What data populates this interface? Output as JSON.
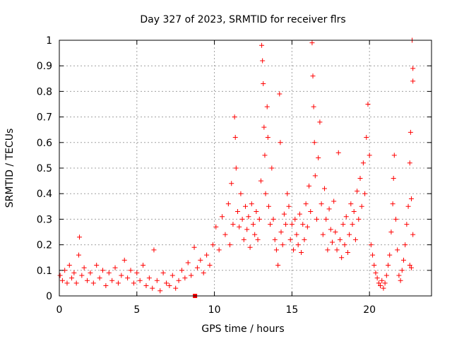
{
  "chart_data": {
    "type": "scatter",
    "title": "Day 327 of 2023, SRMTID for receiver flrs",
    "xlabel": "GPS time / hours",
    "ylabel": "SRMTID / TECUs",
    "xlim": [
      0,
      24
    ],
    "ylim": [
      0,
      1
    ],
    "xticks": [
      0,
      5,
      10,
      15,
      20
    ],
    "xtick_labels": [
      "0",
      "5",
      "10",
      "15",
      "20"
    ],
    "yticks": [
      0,
      0.1,
      0.2,
      0.3,
      0.4,
      0.5,
      0.6,
      0.7,
      0.8,
      0.9,
      1
    ],
    "ytick_labels": [
      "0",
      "0.1",
      "0.2",
      "0.3",
      "0.4",
      "0.5",
      "0.6",
      "0.7",
      "0.8",
      "0.9",
      "1"
    ],
    "grid": true,
    "marker": "+",
    "color": "#ff0000",
    "series": [
      {
        "name": "SRMTID",
        "points": [
          [
            0.05,
            0.08
          ],
          [
            0.2,
            0.06
          ],
          [
            0.35,
            0.1
          ],
          [
            0.5,
            0.05
          ],
          [
            0.65,
            0.12
          ],
          [
            0.8,
            0.07
          ],
          [
            0.95,
            0.09
          ],
          [
            1.1,
            0.05
          ],
          [
            1.25,
            0.16
          ],
          [
            1.3,
            0.23
          ],
          [
            1.45,
            0.08
          ],
          [
            1.6,
            0.11
          ],
          [
            1.8,
            0.06
          ],
          [
            2.0,
            0.09
          ],
          [
            2.2,
            0.05
          ],
          [
            2.4,
            0.12
          ],
          [
            2.6,
            0.07
          ],
          [
            2.8,
            0.1
          ],
          [
            3.0,
            0.04
          ],
          [
            3.2,
            0.09
          ],
          [
            3.4,
            0.06
          ],
          [
            3.6,
            0.11
          ],
          [
            3.8,
            0.05
          ],
          [
            4.0,
            0.08
          ],
          [
            4.2,
            0.14
          ],
          [
            4.4,
            0.07
          ],
          [
            4.6,
            0.1
          ],
          [
            4.8,
            0.05
          ],
          [
            5.0,
            0.09
          ],
          [
            5.2,
            0.06
          ],
          [
            5.4,
            0.12
          ],
          [
            5.6,
            0.04
          ],
          [
            5.8,
            0.07
          ],
          [
            6.0,
            0.03
          ],
          [
            6.1,
            0.18
          ],
          [
            6.3,
            0.06
          ],
          [
            6.5,
            0.02
          ],
          [
            6.7,
            0.09
          ],
          [
            6.9,
            0.05
          ],
          [
            7.1,
            0.04
          ],
          [
            7.3,
            0.08
          ],
          [
            7.5,
            0.03
          ],
          [
            7.7,
            0.06
          ],
          [
            7.9,
            0.1
          ],
          [
            8.1,
            0.07
          ],
          [
            8.3,
            0.13
          ],
          [
            8.5,
            0.08
          ],
          [
            8.7,
            0.19
          ],
          [
            8.9,
            0.11
          ],
          [
            9.1,
            0.14
          ],
          [
            9.3,
            0.09
          ],
          [
            9.5,
            0.16
          ],
          [
            9.7,
            0.12
          ],
          [
            9.9,
            0.2
          ],
          [
            10.1,
            0.27
          ],
          [
            10.3,
            0.18
          ],
          [
            10.5,
            0.31
          ],
          [
            10.7,
            0.24
          ],
          [
            10.9,
            0.36
          ],
          [
            11.0,
            0.2
          ],
          [
            11.1,
            0.44
          ],
          [
            11.2,
            0.28
          ],
          [
            11.3,
            0.7
          ],
          [
            11.35,
            0.62
          ],
          [
            11.4,
            0.5
          ],
          [
            11.5,
            0.33
          ],
          [
            11.6,
            0.27
          ],
          [
            11.7,
            0.4
          ],
          [
            11.8,
            0.3
          ],
          [
            11.9,
            0.22
          ],
          [
            12.0,
            0.35
          ],
          [
            12.1,
            0.26
          ],
          [
            12.2,
            0.31
          ],
          [
            12.3,
            0.19
          ],
          [
            12.4,
            0.36
          ],
          [
            12.5,
            0.28
          ],
          [
            12.6,
            0.24
          ],
          [
            12.7,
            0.33
          ],
          [
            12.8,
            0.22
          ],
          [
            12.9,
            0.3
          ],
          [
            13.0,
            0.45
          ],
          [
            13.05,
            0.98
          ],
          [
            13.1,
            0.92
          ],
          [
            13.15,
            0.83
          ],
          [
            13.2,
            0.66
          ],
          [
            13.25,
            0.55
          ],
          [
            13.3,
            0.4
          ],
          [
            13.4,
            0.74
          ],
          [
            13.45,
            0.62
          ],
          [
            13.5,
            0.35
          ],
          [
            13.6,
            0.28
          ],
          [
            13.7,
            0.5
          ],
          [
            13.8,
            0.3
          ],
          [
            13.9,
            0.22
          ],
          [
            14.0,
            0.18
          ],
          [
            14.1,
            0.12
          ],
          [
            14.2,
            0.79
          ],
          [
            14.25,
            0.6
          ],
          [
            14.3,
            0.25
          ],
          [
            14.4,
            0.2
          ],
          [
            14.5,
            0.32
          ],
          [
            14.6,
            0.28
          ],
          [
            14.7,
            0.4
          ],
          [
            14.8,
            0.35
          ],
          [
            14.9,
            0.22
          ],
          [
            15.0,
            0.28
          ],
          [
            15.1,
            0.18
          ],
          [
            15.2,
            0.3
          ],
          [
            15.3,
            0.24
          ],
          [
            15.4,
            0.2
          ],
          [
            15.5,
            0.32
          ],
          [
            15.6,
            0.17
          ],
          [
            15.7,
            0.28
          ],
          [
            15.8,
            0.22
          ],
          [
            15.9,
            0.36
          ],
          [
            16.0,
            0.27
          ],
          [
            16.1,
            0.43
          ],
          [
            16.2,
            0.33
          ],
          [
            16.3,
            0.99
          ],
          [
            16.35,
            0.86
          ],
          [
            16.4,
            0.74
          ],
          [
            16.45,
            0.6
          ],
          [
            16.5,
            0.47
          ],
          [
            16.6,
            0.3
          ],
          [
            16.7,
            0.54
          ],
          [
            16.8,
            0.68
          ],
          [
            16.9,
            0.36
          ],
          [
            17.0,
            0.24
          ],
          [
            17.1,
            0.42
          ],
          [
            17.2,
            0.3
          ],
          [
            17.3,
            0.18
          ],
          [
            17.4,
            0.34
          ],
          [
            17.5,
            0.26
          ],
          [
            17.6,
            0.21
          ],
          [
            17.7,
            0.37
          ],
          [
            17.8,
            0.25
          ],
          [
            17.9,
            0.18
          ],
          [
            18.0,
            0.56
          ],
          [
            18.1,
            0.22
          ],
          [
            18.2,
            0.15
          ],
          [
            18.3,
            0.28
          ],
          [
            18.4,
            0.2
          ],
          [
            18.5,
            0.31
          ],
          [
            18.6,
            0.17
          ],
          [
            18.7,
            0.24
          ],
          [
            18.8,
            0.36
          ],
          [
            18.9,
            0.28
          ],
          [
            19.0,
            0.33
          ],
          [
            19.1,
            0.22
          ],
          [
            19.2,
            0.41
          ],
          [
            19.3,
            0.3
          ],
          [
            19.4,
            0.46
          ],
          [
            19.5,
            0.35
          ],
          [
            19.6,
            0.52
          ],
          [
            19.7,
            0.4
          ],
          [
            19.8,
            0.62
          ],
          [
            19.9,
            0.75
          ],
          [
            20.0,
            0.55
          ],
          [
            20.1,
            0.2
          ],
          [
            20.2,
            0.16
          ],
          [
            20.3,
            0.12
          ],
          [
            20.4,
            0.09
          ],
          [
            20.5,
            0.07
          ],
          [
            20.6,
            0.05
          ],
          [
            20.7,
            0.04
          ],
          [
            20.8,
            0.06
          ],
          [
            20.9,
            0.03
          ],
          [
            21.0,
            0.05
          ],
          [
            21.1,
            0.08
          ],
          [
            21.2,
            0.12
          ],
          [
            21.3,
            0.16
          ],
          [
            21.4,
            0.25
          ],
          [
            21.5,
            0.36
          ],
          [
            21.55,
            0.46
          ],
          [
            21.6,
            0.55
          ],
          [
            21.7,
            0.3
          ],
          [
            21.8,
            0.18
          ],
          [
            21.9,
            0.08
          ],
          [
            22.0,
            0.06
          ],
          [
            22.1,
            0.1
          ],
          [
            22.2,
            0.14
          ],
          [
            22.3,
            0.2
          ],
          [
            22.4,
            0.28
          ],
          [
            22.5,
            0.35
          ],
          [
            22.6,
            0.52
          ],
          [
            22.65,
            0.64
          ],
          [
            22.7,
            0.38
          ],
          [
            22.75,
            1.0
          ],
          [
            22.8,
            0.89
          ],
          [
            22.8,
            0.84
          ],
          [
            22.8,
            0.24
          ],
          [
            22.7,
            0.11
          ],
          [
            22.6,
            0.12
          ]
        ]
      }
    ],
    "annotations": [
      {
        "type": "square-marker",
        "x": 8.75,
        "y": 0.0
      }
    ]
  }
}
